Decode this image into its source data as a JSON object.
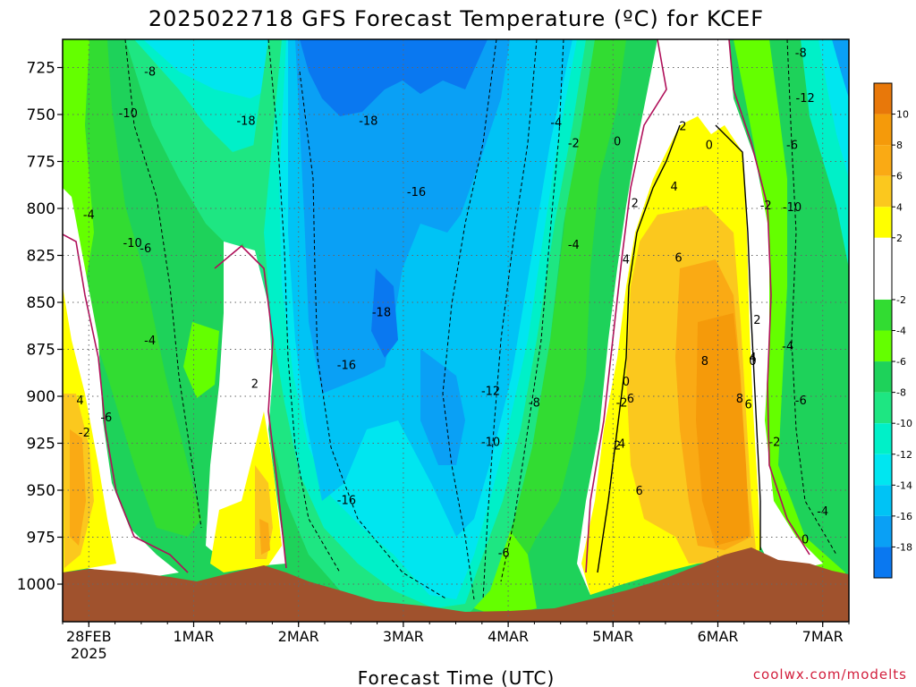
{
  "header": {
    "title": "2025022718 GFS Forecast Temperature (ºC) for KCEF"
  },
  "credit": "coolwx.com/modelts",
  "chart_data": {
    "type": "heatmap",
    "title": "2025022718 GFS Forecast Temperature (ºC) for KCEF",
    "xlabel": "Forecast Time (UTC)",
    "ylabel": "",
    "y_axis": {
      "ticks": [
        725,
        750,
        775,
        800,
        825,
        850,
        875,
        900,
        925,
        950,
        975,
        1000
      ],
      "range": [
        1020,
        710
      ],
      "unit": "hPa"
    },
    "x_axis": {
      "ticks": [
        {
          "label": "28FEB",
          "sub": "2025",
          "hours": 6
        },
        {
          "label": "1MAR",
          "sub": "",
          "hours": 30
        },
        {
          "label": "2MAR",
          "sub": "",
          "hours": 54
        },
        {
          "label": "3MAR",
          "sub": "",
          "hours": 78
        },
        {
          "label": "4MAR",
          "sub": "",
          "hours": 102
        },
        {
          "label": "5MAR",
          "sub": "",
          "hours": 126
        },
        {
          "label": "6MAR",
          "sub": "",
          "hours": 150
        },
        {
          "label": "7MAR",
          "sub": "",
          "hours": 174
        }
      ],
      "range": [
        0,
        180
      ],
      "unit": "hours after 2025022718"
    },
    "colorbar": {
      "ticks": [
        10,
        8,
        6,
        4,
        2,
        -2,
        -4,
        -6,
        -8,
        -10,
        -12,
        -14,
        -16,
        -18
      ],
      "bins": [
        {
          "lo": 10,
          "hi": 12,
          "color": "#e8780a"
        },
        {
          "lo": 8,
          "hi": 10,
          "color": "#f59a0a"
        },
        {
          "lo": 6,
          "hi": 8,
          "color": "#faaa14"
        },
        {
          "lo": 4,
          "hi": 6,
          "color": "#fbc81e"
        },
        {
          "lo": 2,
          "hi": 4,
          "color": "#ffff00"
        },
        {
          "lo": -2,
          "hi": 2,
          "color": "#ffffff"
        },
        {
          "lo": -4,
          "hi": -2,
          "color": "#32dc32"
        },
        {
          "lo": -6,
          "hi": -4,
          "color": "#64ff00"
        },
        {
          "lo": -8,
          "hi": -6,
          "color": "#1ed25a"
        },
        {
          "lo": -10,
          "hi": -8,
          "color": "#1ee682"
        },
        {
          "lo": -12,
          "hi": -10,
          "color": "#00f0c8"
        },
        {
          "lo": -14,
          "hi": -12,
          "color": "#00e6f0"
        },
        {
          "lo": -16,
          "hi": -14,
          "color": "#00c3f5"
        },
        {
          "lo": -18,
          "hi": -16,
          "color": "#0aa0f5"
        },
        {
          "lo": -20,
          "hi": -18,
          "color": "#0a78f0"
        }
      ]
    },
    "contour_labels": [
      {
        "text": "-8",
        "hours": 20,
        "p": 727
      },
      {
        "text": "-10",
        "hours": 15,
        "p": 749
      },
      {
        "text": "-18",
        "hours": 42,
        "p": 753
      },
      {
        "text": "-18",
        "hours": 70,
        "p": 753
      },
      {
        "text": "-16",
        "hours": 81,
        "p": 791
      },
      {
        "text": "-4",
        "hours": 6,
        "p": 803
      },
      {
        "text": "-10",
        "hours": 16,
        "p": 818
      },
      {
        "text": "-6",
        "hours": 19,
        "p": 821
      },
      {
        "text": "-18",
        "hours": 73,
        "p": 855
      },
      {
        "text": "-16",
        "hours": 65,
        "p": 883
      },
      {
        "text": "-4",
        "hours": 20,
        "p": 870
      },
      {
        "text": "2",
        "hours": 44,
        "p": 893
      },
      {
        "text": "4",
        "hours": 4,
        "p": 902
      },
      {
        "text": "-6",
        "hours": 10,
        "p": 911
      },
      {
        "text": "-2",
        "hours": 5,
        "p": 919
      },
      {
        "text": "-16",
        "hours": 65,
        "p": 955
      },
      {
        "text": "-12",
        "hours": 98,
        "p": 897
      },
      {
        "text": "-10",
        "hours": 98,
        "p": 924
      },
      {
        "text": "-8",
        "hours": 108,
        "p": 903
      },
      {
        "text": "-6",
        "hours": 101,
        "p": 983
      },
      {
        "text": "-4",
        "hours": 113,
        "p": 754
      },
      {
        "text": "-2",
        "hours": 117,
        "p": 765
      },
      {
        "text": "-4",
        "hours": 117,
        "p": 819
      },
      {
        "text": "0",
        "hours": 127,
        "p": 764
      },
      {
        "text": "0",
        "hours": 129,
        "p": 892
      },
      {
        "text": "-2",
        "hours": 128,
        "p": 903
      },
      {
        "text": "2",
        "hours": 142,
        "p": 756
      },
      {
        "text": "0",
        "hours": 148,
        "p": 766
      },
      {
        "text": "4",
        "hours": 140,
        "p": 788
      },
      {
        "text": "2",
        "hours": 131,
        "p": 797
      },
      {
        "text": "4",
        "hours": 129,
        "p": 827
      },
      {
        "text": "6",
        "hours": 141,
        "p": 826
      },
      {
        "text": "2",
        "hours": 159,
        "p": 859
      },
      {
        "text": "8",
        "hours": 147,
        "p": 881
      },
      {
        "text": "4",
        "hours": 158,
        "p": 879
      },
      {
        "text": "0",
        "hours": 158,
        "p": 881
      },
      {
        "text": "6",
        "hours": 130,
        "p": 901
      },
      {
        "text": "8",
        "hours": 155,
        "p": 901
      },
      {
        "text": "6",
        "hours": 157,
        "p": 904
      },
      {
        "text": "2",
        "hours": 127,
        "p": 926
      },
      {
        "text": "4",
        "hours": 128,
        "p": 925
      },
      {
        "text": "6",
        "hours": 132,
        "p": 950
      },
      {
        "text": "-2",
        "hours": 161,
        "p": 798
      },
      {
        "text": "-10",
        "hours": 167,
        "p": 799
      },
      {
        "text": "-12",
        "hours": 170,
        "p": 741
      },
      {
        "text": "-8",
        "hours": 169,
        "p": 717
      },
      {
        "text": "-6",
        "hours": 167,
        "p": 766
      },
      {
        "text": "-4",
        "hours": 166,
        "p": 873
      },
      {
        "text": "-6",
        "hours": 169,
        "p": 902
      },
      {
        "text": "-2",
        "hours": 163,
        "p": 924
      },
      {
        "text": "-4",
        "hours": 174,
        "p": 961
      },
      {
        "text": "0",
        "hours": 170,
        "p": 976
      }
    ]
  }
}
